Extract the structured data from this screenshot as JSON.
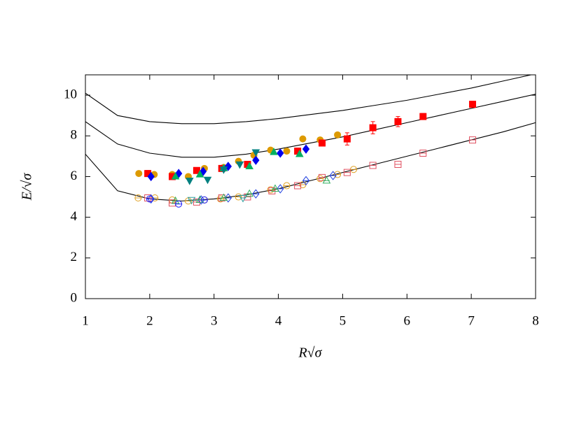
{
  "chart_data": {
    "type": "scatter",
    "xlabel": "R√σ",
    "ylabel": "E/√σ",
    "xlim": [
      1,
      8
    ],
    "ylim": [
      0,
      11
    ],
    "xticks": [
      1,
      2,
      3,
      4,
      5,
      6,
      7,
      8
    ],
    "yticks": [
      0,
      2,
      4,
      6,
      8,
      10
    ],
    "grid": false,
    "series": [
      {
        "marker": "line",
        "color": "#000000",
        "x": [
          1,
          1.5,
          2,
          2.5,
          3,
          3.5,
          4,
          4.5,
          5,
          5.5,
          6,
          6.5,
          7,
          7.5,
          8
        ],
        "values": [
          10.1,
          9.0,
          8.7,
          8.6,
          8.6,
          8.7,
          8.85,
          9.05,
          9.25,
          9.5,
          9.75,
          10.05,
          10.35,
          10.7,
          11.05
        ]
      },
      {
        "marker": "line",
        "color": "#000000",
        "x": [
          1,
          1.5,
          2,
          2.5,
          3,
          3.5,
          4,
          4.5,
          5,
          5.5,
          6,
          6.5,
          7,
          7.5,
          8
        ],
        "values": [
          8.7,
          7.6,
          7.15,
          6.95,
          6.95,
          7.1,
          7.35,
          7.65,
          7.95,
          8.3,
          8.65,
          9.0,
          9.35,
          9.7,
          10.05
        ]
      },
      {
        "marker": "line",
        "color": "#000000",
        "x": [
          1,
          1.5,
          2,
          2.5,
          3,
          3.5,
          4,
          4.5,
          5,
          5.5,
          6,
          6.5,
          7,
          7.5,
          8
        ],
        "values": [
          7.1,
          5.3,
          4.9,
          4.8,
          4.9,
          5.1,
          5.4,
          5.8,
          6.2,
          6.6,
          7.0,
          7.4,
          7.8,
          8.2,
          8.65
        ]
      },
      {
        "marker": "circle",
        "filled": true,
        "color": "#dd9a00",
        "x": [
          1.83,
          2.07,
          2.35,
          2.6,
          2.85,
          3.15,
          3.38,
          3.62,
          3.88,
          4.13,
          4.38,
          4.65,
          4.92
        ],
        "values": [
          6.15,
          6.1,
          6.1,
          6.0,
          6.4,
          6.45,
          6.75,
          7.05,
          7.3,
          7.25,
          7.85,
          7.8,
          8.05
        ]
      },
      {
        "marker": "square",
        "filled": true,
        "color": "#ff0000",
        "x": [
          1.97,
          2.35,
          2.73,
          3.12,
          3.52,
          4.3,
          4.68,
          5.07,
          5.47,
          5.86,
          6.25,
          7.02
        ],
        "values": [
          6.15,
          6.0,
          6.3,
          6.4,
          6.6,
          7.25,
          7.65,
          7.85,
          8.4,
          8.7,
          8.95,
          9.55
        ],
        "errors": [
          0.15,
          0.1,
          0.1,
          0.15,
          0.1,
          0.15,
          0.15,
          0.3,
          0.3,
          0.25,
          0.15,
          0.15
        ]
      },
      {
        "marker": "diamond",
        "filled": true,
        "color": "#0000ee",
        "x": [
          2.02,
          2.45,
          2.83,
          3.22,
          3.65,
          4.03,
          4.43
        ],
        "values": [
          6.0,
          6.15,
          6.25,
          6.5,
          6.8,
          7.15,
          7.35
        ]
      },
      {
        "marker": "triangle-up",
        "filled": true,
        "color": "#00b060",
        "x": [
          2.4,
          2.78,
          3.15,
          3.55,
          3.93,
          4.33
        ],
        "values": [
          6.0,
          6.1,
          6.4,
          6.5,
          7.2,
          7.1
        ]
      },
      {
        "marker": "triangle-down",
        "filled": true,
        "color": "#008080",
        "x": [
          2.62,
          2.9,
          3.15,
          3.4,
          3.65
        ],
        "values": [
          5.8,
          5.85,
          6.35,
          6.6,
          7.2
        ]
      },
      {
        "marker": "circle",
        "filled": false,
        "color": "#e0a020",
        "x": [
          1.82,
          2.08,
          2.35,
          2.6,
          2.85,
          3.1,
          3.38,
          3.88,
          4.13,
          4.38,
          4.65,
          4.92,
          5.17
        ],
        "values": [
          4.95,
          4.95,
          4.85,
          4.8,
          4.85,
          4.9,
          5.0,
          5.35,
          5.55,
          5.6,
          5.9,
          6.1,
          6.35
        ]
      },
      {
        "marker": "square",
        "filled": false,
        "color": "#e05060",
        "x": [
          1.97,
          2.35,
          2.73,
          3.12,
          3.52,
          3.9,
          4.3,
          4.68,
          5.07,
          5.47,
          5.86,
          6.25,
          7.02
        ],
        "values": [
          4.95,
          4.7,
          4.75,
          4.95,
          5.0,
          5.3,
          5.55,
          5.95,
          6.2,
          6.55,
          6.6,
          7.15,
          7.8
        ]
      },
      {
        "marker": "diamond",
        "filled": false,
        "color": "#2040e0",
        "x": [
          2.02,
          2.8,
          3.22,
          3.65,
          4.03,
          4.43,
          4.85
        ],
        "values": [
          4.9,
          4.85,
          4.95,
          5.15,
          5.4,
          5.8,
          6.05
        ]
      },
      {
        "marker": "triangle-up",
        "filled": false,
        "color": "#30b060",
        "x": [
          2.4,
          2.78,
          3.15,
          3.55,
          3.95,
          4.75
        ],
        "values": [
          4.8,
          4.85,
          4.95,
          5.15,
          5.4,
          5.8
        ]
      },
      {
        "marker": "circle",
        "filled": false,
        "color": "#2020ff",
        "x": [
          2.0,
          2.45,
          2.85
        ],
        "values": [
          4.9,
          4.65,
          4.85
        ]
      },
      {
        "marker": "triangle-down",
        "filled": false,
        "color": "#30a0a0",
        "x": [
          2.65,
          3.45
        ],
        "values": [
          4.85,
          4.95
        ]
      }
    ]
  }
}
